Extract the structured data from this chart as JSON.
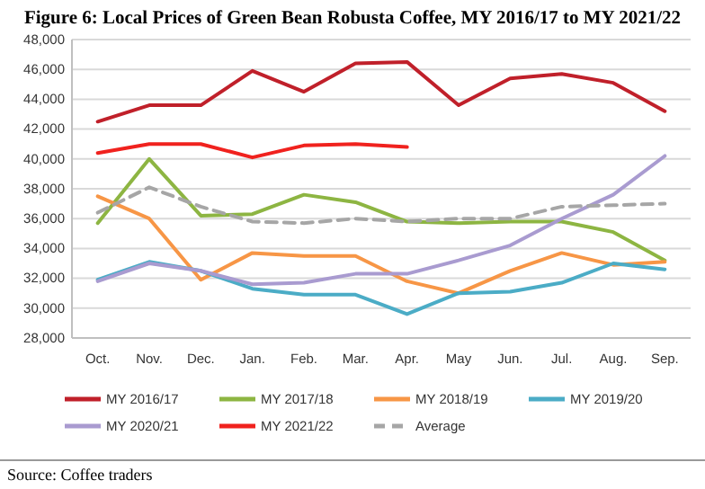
{
  "chart_data": {
    "type": "line",
    "title": "Figure 6: Local Prices of Green Bean Robusta Coffee, MY 2016/17 to MY 2021/22",
    "categories": [
      "Oct.",
      "Nov.",
      "Dec.",
      "Jan.",
      "Feb.",
      "Mar.",
      "Apr.",
      "May",
      "Jun.",
      "Jul.",
      "Aug.",
      "Sep."
    ],
    "series": [
      {
        "name": "MY 2016/17",
        "color": "#c0202a",
        "values": [
          42500,
          43600,
          43600,
          45900,
          44500,
          46400,
          46500,
          43600,
          45400,
          45700,
          45100,
          43200
        ]
      },
      {
        "name": "MY 2017/18",
        "color": "#8db542",
        "values": [
          35700,
          40000,
          36200,
          36300,
          37600,
          37100,
          35800,
          35700,
          35800,
          35800,
          35100,
          33200
        ]
      },
      {
        "name": "MY 2018/19",
        "color": "#f79646",
        "values": [
          37500,
          36000,
          31900,
          33700,
          33500,
          33500,
          31800,
          31000,
          32500,
          33700,
          32900,
          33100
        ]
      },
      {
        "name": "MY 2019/20",
        "color": "#4bacc6",
        "values": [
          31900,
          33100,
          32500,
          31300,
          30900,
          30900,
          29600,
          31000,
          31100,
          31700,
          33000,
          32600
        ]
      },
      {
        "name": "MY 2020/21",
        "color": "#a99bd0",
        "values": [
          31800,
          33000,
          32500,
          31600,
          31700,
          32300,
          32300,
          33200,
          34200,
          36000,
          37600,
          40200
        ]
      },
      {
        "name": "MY 2021/22",
        "color": "#f0221e",
        "values": [
          40400,
          41000,
          41000,
          40100,
          40900,
          41000,
          40800,
          null,
          null,
          null,
          null,
          null
        ]
      },
      {
        "name": "Average",
        "color": "#a6a6a6",
        "line_style": "dashed",
        "values": [
          36400,
          38100,
          36800,
          35800,
          35700,
          36000,
          35800,
          36000,
          36000,
          36800,
          36900,
          37000
        ]
      }
    ],
    "ylim": [
      28000,
      48000
    ],
    "yticks": [
      {
        "value": 28000,
        "label": "28,000"
      },
      {
        "value": 30000,
        "label": "30,000"
      },
      {
        "value": 32000,
        "label": "32,000"
      },
      {
        "value": 34000,
        "label": "34,000"
      },
      {
        "value": 36000,
        "label": "36,000"
      },
      {
        "value": 38000,
        "label": "38,000"
      },
      {
        "value": 40000,
        "label": "40,000"
      },
      {
        "value": 42000,
        "label": "42,000"
      },
      {
        "value": 44000,
        "label": "44,000"
      },
      {
        "value": 46000,
        "label": "46,000"
      },
      {
        "value": 48000,
        "label": "48,000"
      }
    ],
    "grid": "y",
    "legend": "bottom",
    "marker": "none",
    "annotations": [
      "Source: Coffee traders"
    ]
  }
}
